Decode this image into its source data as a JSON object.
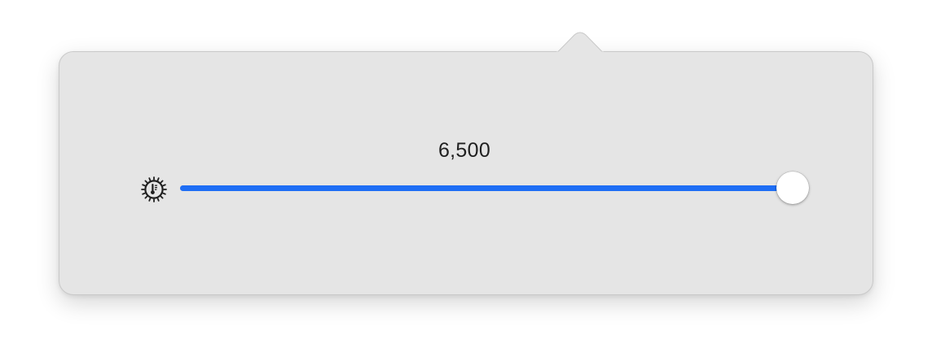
{
  "color_temperature": {
    "value_label": "6,500",
    "level": 1.0,
    "icon": "thermometer-sun-icon"
  },
  "colors": {
    "accent": "#1e6ef5",
    "panel": "#e5e5e5",
    "thumb": "#ffffff"
  }
}
